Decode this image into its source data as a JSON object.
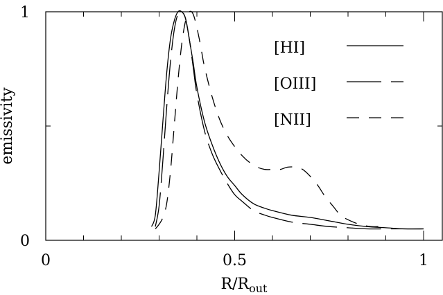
{
  "chart_data": {
    "type": "line",
    "title": "",
    "xlabel": "R/R",
    "xlabel_sub": "out",
    "ylabel": "emissivity",
    "xlim": [
      0,
      1.05
    ],
    "ylim": [
      0,
      1
    ],
    "xticks": [
      {
        "value": 0,
        "label": "0"
      },
      {
        "value": 0.5,
        "label": "0.5"
      },
      {
        "value": 1,
        "label": "1"
      }
    ],
    "yticks": [
      {
        "value": 0,
        "label": "0"
      },
      {
        "value": 1,
        "label": "1"
      }
    ],
    "grid": false,
    "legend": "top-right",
    "series": [
      {
        "name": "[HI]",
        "style": "solid",
        "x": [
          0.28,
          0.29,
          0.3,
          0.31,
          0.32,
          0.33,
          0.34,
          0.35,
          0.36,
          0.37,
          0.38,
          0.39,
          0.4,
          0.42,
          0.44,
          0.46,
          0.48,
          0.5,
          0.52,
          0.55,
          0.58,
          0.6,
          0.65,
          0.7,
          0.75,
          0.8,
          0.85,
          0.9,
          0.95,
          1.0
        ],
        "y": [
          0.06,
          0.11,
          0.3,
          0.52,
          0.73,
          0.88,
          0.96,
          1.0,
          1.0,
          0.97,
          0.88,
          0.78,
          0.67,
          0.52,
          0.42,
          0.34,
          0.28,
          0.24,
          0.2,
          0.16,
          0.14,
          0.13,
          0.11,
          0.1,
          0.085,
          0.07,
          0.06,
          0.055,
          0.05,
          0.05
        ]
      },
      {
        "name": "[OIII]",
        "style": "long-dash",
        "x": [
          0.29,
          0.3,
          0.31,
          0.32,
          0.33,
          0.34,
          0.35,
          0.36,
          0.37,
          0.38,
          0.39,
          0.4,
          0.42,
          0.44,
          0.46,
          0.48,
          0.5,
          0.52,
          0.55,
          0.58,
          0.6,
          0.65,
          0.7,
          0.75,
          0.8,
          0.85,
          0.9,
          0.95,
          1.0
        ],
        "y": [
          0.06,
          0.15,
          0.35,
          0.58,
          0.78,
          0.92,
          0.99,
          1.0,
          0.97,
          0.88,
          0.76,
          0.64,
          0.48,
          0.38,
          0.31,
          0.25,
          0.2,
          0.17,
          0.13,
          0.11,
          0.1,
          0.08,
          0.07,
          0.06,
          0.055,
          0.05,
          0.05,
          0.05,
          0.05
        ]
      },
      {
        "name": "[NII]",
        "style": "dash",
        "x": [
          0.29,
          0.3,
          0.31,
          0.32,
          0.33,
          0.34,
          0.35,
          0.36,
          0.37,
          0.38,
          0.39,
          0.4,
          0.41,
          0.42,
          0.44,
          0.46,
          0.48,
          0.5,
          0.52,
          0.54,
          0.56,
          0.58,
          0.6,
          0.62,
          0.64,
          0.66,
          0.68,
          0.7,
          0.72,
          0.74,
          0.76,
          0.78,
          0.8,
          0.83,
          0.86,
          0.88
        ],
        "y": [
          0.05,
          0.07,
          0.1,
          0.16,
          0.3,
          0.5,
          0.7,
          0.86,
          0.96,
          1.0,
          0.99,
          0.93,
          0.85,
          0.76,
          0.63,
          0.53,
          0.46,
          0.41,
          0.37,
          0.34,
          0.32,
          0.31,
          0.31,
          0.31,
          0.32,
          0.32,
          0.31,
          0.28,
          0.24,
          0.19,
          0.15,
          0.11,
          0.09,
          0.07,
          0.06,
          0.06
        ]
      }
    ]
  }
}
